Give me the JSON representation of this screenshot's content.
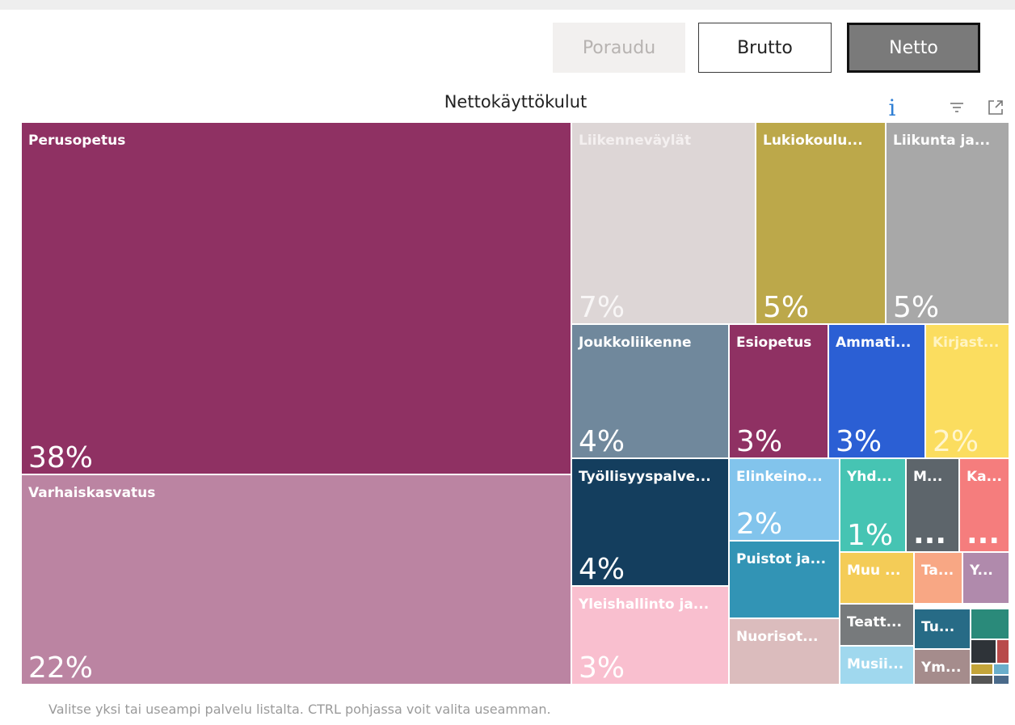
{
  "toolbar": {
    "poraudu_label": "Poraudu",
    "brutto_label": "Brutto",
    "netto_label": "Netto",
    "info_glyph": "i"
  },
  "footer_text": "Valitse yksi tai useampi palvelu listalta. CTRL pohjassa voit valita useamman.",
  "chart_data": {
    "type": "treemap",
    "title": "Nettokäyttökulut",
    "unit": "%",
    "items": [
      {
        "label": "Perusopetus",
        "value": 38,
        "value_label": "38%",
        "color": "#8f3163",
        "label_color": "#ffffff",
        "pct_color": "#ffffff"
      },
      {
        "label": "Varhaiskasvatus",
        "value": 22,
        "value_label": "22%",
        "color": "#bb84a2",
        "label_color": "#ffffff",
        "pct_color": "#ffffff"
      },
      {
        "label": "Liikenneväylät",
        "value": 7,
        "value_label": "7%",
        "color": "#ddd6d6",
        "label_color": "#f4f0f0",
        "pct_color": "#f8f6f6"
      },
      {
        "label": "Lukiokoulu...",
        "value": 5,
        "value_label": "5%",
        "color": "#bca84a",
        "label_color": "#ffffff",
        "pct_color": "#ffffff"
      },
      {
        "label": "Liikunta ja...",
        "value": 5,
        "value_label": "5%",
        "color": "#a8a8a8",
        "label_color": "#ffffff",
        "pct_color": "#ffffff"
      },
      {
        "label": "Joukkoliikenne",
        "value": 4,
        "value_label": "4%",
        "color": "#70889c",
        "label_color": "#ffffff",
        "pct_color": "#ffffff"
      },
      {
        "label": "Esiopetus",
        "value": 3,
        "value_label": "3%",
        "color": "#8f3163",
        "label_color": "#ffffff",
        "pct_color": "#ffffff"
      },
      {
        "label": "Ammati...",
        "value": 3,
        "value_label": "3%",
        "color": "#2b5fd4",
        "label_color": "#ffffff",
        "pct_color": "#ffffff"
      },
      {
        "label": "Kirjast...",
        "value": 2,
        "value_label": "2%",
        "color": "#fbdd5f",
        "label_color": "#fff4c2",
        "pct_color": "#fff6cf"
      },
      {
        "label": "Työllisyyspalve...",
        "value": 4,
        "value_label": "4%",
        "color": "#143e5e",
        "label_color": "#ffffff",
        "pct_color": "#ffffff"
      },
      {
        "label": "Elinkeino...",
        "value": 2,
        "value_label": "2%",
        "color": "#82c4ec",
        "label_color": "#ffffff",
        "pct_color": "#ffffff"
      },
      {
        "label": "Yhd...",
        "value": 1,
        "value_label": "1%",
        "color": "#46c4b3",
        "label_color": "#ffffff",
        "pct_color": "#ffffff"
      },
      {
        "label": "M...",
        "value_label": "...",
        "color": "#5d656b",
        "label_color": "#ffffff",
        "pct_color": "#ffffff"
      },
      {
        "label": "Ka...",
        "value_label": "...",
        "color": "#f57d7d",
        "label_color": "#ffffff",
        "pct_color": "#ffffff"
      },
      {
        "label": "Puistot ja...",
        "value_label": "",
        "color": "#3294b5",
        "label_color": "#ffffff",
        "pct_color": "#ffffff"
      },
      {
        "label": "Muu ...",
        "value_label": "",
        "color": "#f4cc57",
        "label_color": "#ffffff",
        "pct_color": "#ffffff"
      },
      {
        "label": "Ta...",
        "value_label": "",
        "color": "#f8a784",
        "label_color": "#ffffff",
        "pct_color": "#ffffff"
      },
      {
        "label": "Y...",
        "value_label": "",
        "color": "#b08aac",
        "label_color": "#ffffff",
        "pct_color": "#ffffff"
      },
      {
        "label": "Yleishallinto ja...",
        "value": 3,
        "value_label": "3%",
        "color": "#f9bfcf",
        "label_color": "#ffffff",
        "pct_color": "#ffffff"
      },
      {
        "label": "Nuorisot...",
        "value_label": "",
        "color": "#dbbcbd",
        "label_color": "#ffffff",
        "pct_color": "#ffffff"
      },
      {
        "label": "Teatt...",
        "value_label": "",
        "color": "#777a7c",
        "label_color": "#ffffff",
        "pct_color": "#ffffff"
      },
      {
        "label": "Tu...",
        "value_label": "",
        "color": "#276b86",
        "label_color": "#ffffff",
        "pct_color": "#ffffff"
      },
      {
        "label": "Musii...",
        "value_label": "",
        "color": "#a0d8ee",
        "label_color": "#ffffff",
        "pct_color": "#ffffff"
      },
      {
        "label": "Ym...",
        "value_label": "",
        "color": "#a58c8c",
        "label_color": "#ffffff",
        "pct_color": "#ffffff"
      },
      {
        "label": "",
        "value_label": "",
        "color": "#2a8a7a",
        "label_color": "#ffffff",
        "pct_color": "#ffffff"
      },
      {
        "label": "",
        "value_label": "",
        "color": "#2e3338",
        "label_color": "#ffffff",
        "pct_color": "#ffffff"
      },
      {
        "label": "",
        "value_label": "",
        "color": "#b84a4a",
        "label_color": "#ffffff",
        "pct_color": "#ffffff"
      },
      {
        "label": "",
        "value_label": "",
        "color": "#c4a53a",
        "label_color": "#ffffff",
        "pct_color": "#ffffff"
      },
      {
        "label": "",
        "value_label": "",
        "color": "#6aaecb",
        "label_color": "#ffffff",
        "pct_color": "#ffffff"
      },
      {
        "label": "",
        "value_label": "",
        "color": "#555555",
        "label_color": "#ffffff",
        "pct_color": "#ffffff"
      },
      {
        "label": "",
        "value_label": "",
        "color": "#4a6a8a",
        "label_color": "#ffffff",
        "pct_color": "#ffffff"
      }
    ]
  }
}
